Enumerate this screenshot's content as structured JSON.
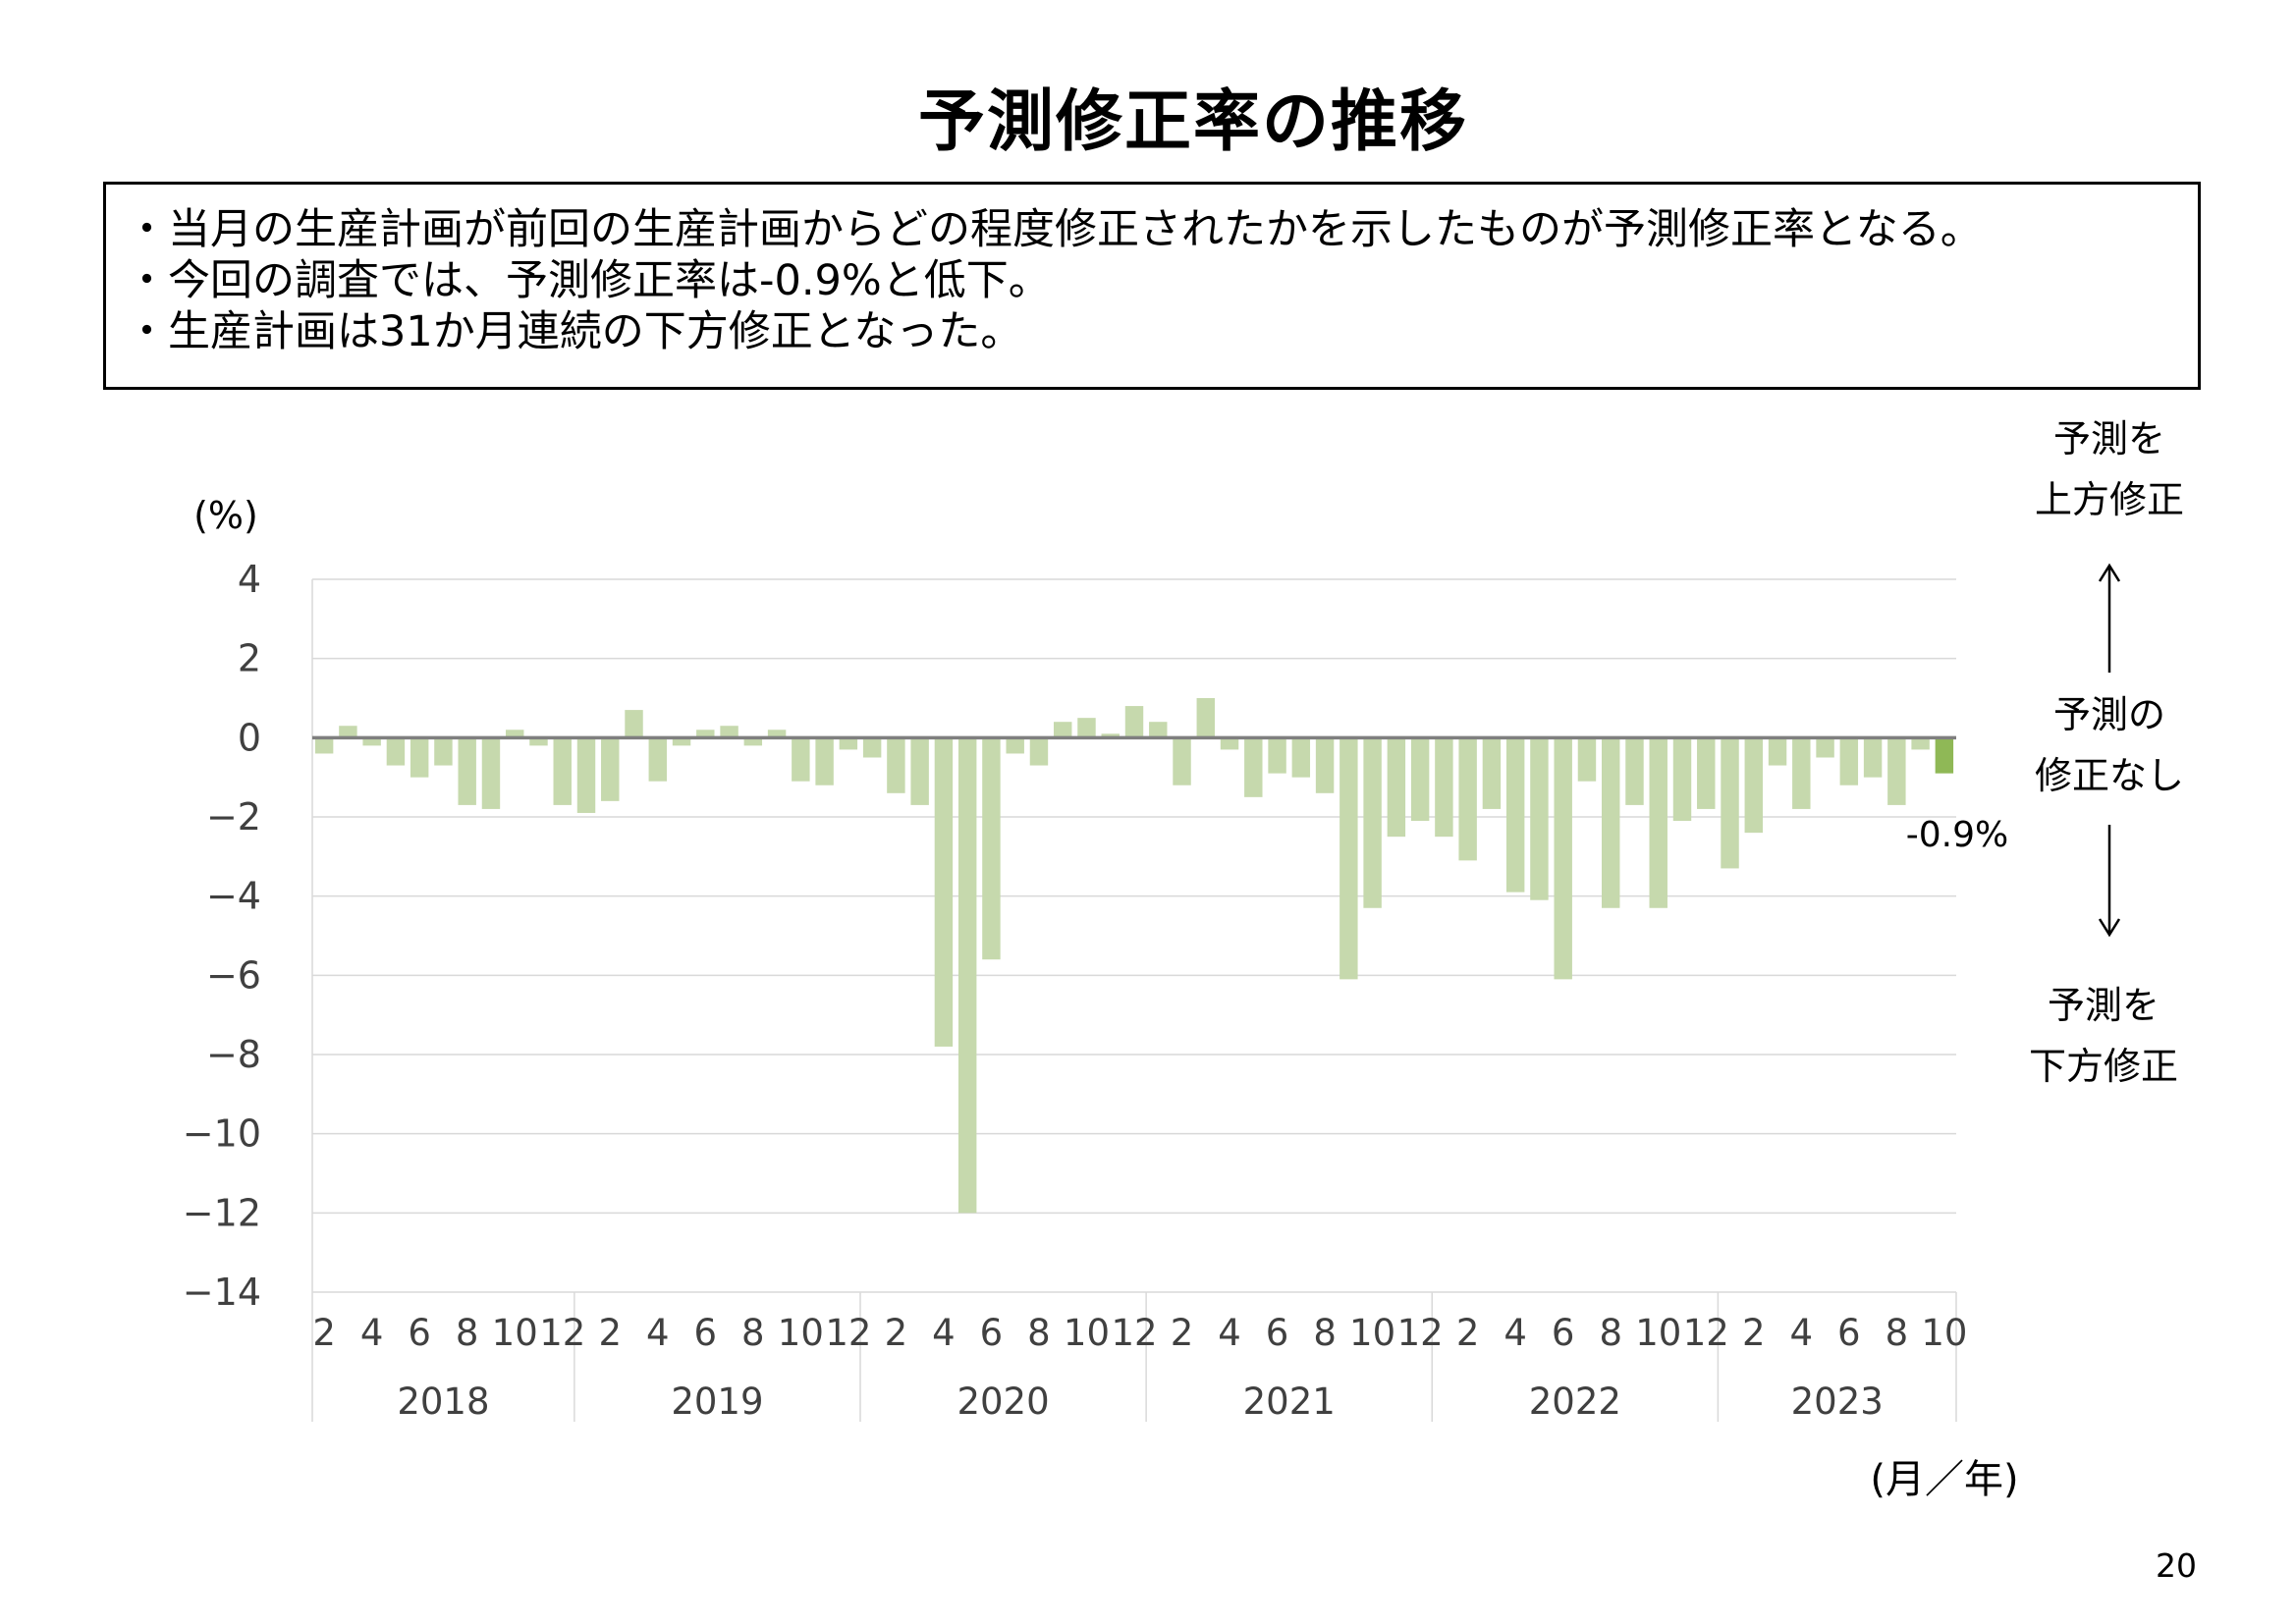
{
  "page": {
    "title": "予測修正率の推移",
    "notes": [
      "・当月の生産計画が前回の生産計画からどの程度修正されたかを示したものが予測修正率となる。",
      "・今回の調査では、予測修正率は-0.9%と低下。",
      "・生産計画は31か月連続の下方修正となった。"
    ],
    "side_labels": {
      "upper": [
        "予測を",
        "上方修正"
      ],
      "middle": [
        "予測の",
        "修正なし"
      ],
      "lower": [
        "予測を",
        "下方修正"
      ]
    },
    "page_number": "20"
  },
  "chart_data": {
    "type": "bar",
    "ylabel": "(%)",
    "xlabel": "(月／年)",
    "ylim": [
      -14,
      4
    ],
    "yticks": [
      4,
      2,
      0,
      -2,
      -4,
      -6,
      -8,
      -10,
      -12,
      -14
    ],
    "ytick_labels": [
      "4",
      "2",
      "0",
      "−2",
      "−4",
      "−6",
      "−8",
      "−10",
      "−12",
      "−14"
    ],
    "grid": true,
    "legend": "none",
    "years": [
      {
        "label": "2018",
        "start": 0,
        "count": 11
      },
      {
        "label": "2019",
        "start": 11,
        "count": 12
      },
      {
        "label": "2020",
        "start": 23,
        "count": 12
      },
      {
        "label": "2021",
        "start": 35,
        "count": 12
      },
      {
        "label": "2022",
        "start": 47,
        "count": 12
      },
      {
        "label": "2023",
        "start": 59,
        "count": 10
      }
    ],
    "month_ticks": [
      {
        "index": 0,
        "label": "2"
      },
      {
        "index": 2,
        "label": "4"
      },
      {
        "index": 4,
        "label": "6"
      },
      {
        "index": 6,
        "label": "8"
      },
      {
        "index": 8,
        "label": "10"
      },
      {
        "index": 10,
        "label": "12"
      },
      {
        "index": 12,
        "label": "2"
      },
      {
        "index": 14,
        "label": "4"
      },
      {
        "index": 16,
        "label": "6"
      },
      {
        "index": 18,
        "label": "8"
      },
      {
        "index": 20,
        "label": "10"
      },
      {
        "index": 22,
        "label": "12"
      },
      {
        "index": 24,
        "label": "2"
      },
      {
        "index": 26,
        "label": "4"
      },
      {
        "index": 28,
        "label": "6"
      },
      {
        "index": 30,
        "label": "8"
      },
      {
        "index": 32,
        "label": "10"
      },
      {
        "index": 34,
        "label": "12"
      },
      {
        "index": 36,
        "label": "2"
      },
      {
        "index": 38,
        "label": "4"
      },
      {
        "index": 40,
        "label": "6"
      },
      {
        "index": 42,
        "label": "8"
      },
      {
        "index": 44,
        "label": "10"
      },
      {
        "index": 46,
        "label": "12"
      },
      {
        "index": 48,
        "label": "2"
      },
      {
        "index": 50,
        "label": "4"
      },
      {
        "index": 52,
        "label": "6"
      },
      {
        "index": 54,
        "label": "8"
      },
      {
        "index": 56,
        "label": "10"
      },
      {
        "index": 58,
        "label": "12"
      },
      {
        "index": 60,
        "label": "2"
      },
      {
        "index": 62,
        "label": "4"
      },
      {
        "index": 64,
        "label": "6"
      },
      {
        "index": 66,
        "label": "8"
      },
      {
        "index": 68,
        "label": "10"
      }
    ],
    "values": [
      -0.4,
      0.3,
      -0.2,
      -0.7,
      -1.0,
      -0.7,
      -1.7,
      -1.8,
      0.2,
      -0.2,
      -1.7,
      -1.9,
      -1.6,
      0.7,
      -1.1,
      -0.2,
      0.2,
      0.3,
      -0.2,
      0.2,
      -1.1,
      -1.2,
      -0.3,
      -0.5,
      -1.4,
      -1.7,
      -7.8,
      -12.0,
      -5.6,
      -0.4,
      -0.7,
      0.4,
      0.5,
      0.1,
      0.8,
      0.4,
      -1.2,
      1.0,
      -0.3,
      -1.5,
      -0.9,
      -1.0,
      -1.4,
      -6.1,
      -4.3,
      -2.5,
      -2.1,
      -2.5,
      -3.1,
      -1.8,
      -3.9,
      -4.1,
      -6.1,
      -1.1,
      -4.3,
      -1.7,
      -4.3,
      -2.1,
      -1.8,
      -3.3,
      -2.4,
      -0.7,
      -1.8,
      -0.5,
      -1.2,
      -1.0,
      -1.7,
      -0.3,
      -0.9
    ],
    "bar_color": "#c6d9ad",
    "highlight_color": "#8fb856",
    "highlight_index": 68,
    "annotation": {
      "index": 68,
      "text": "-0.9%"
    }
  }
}
